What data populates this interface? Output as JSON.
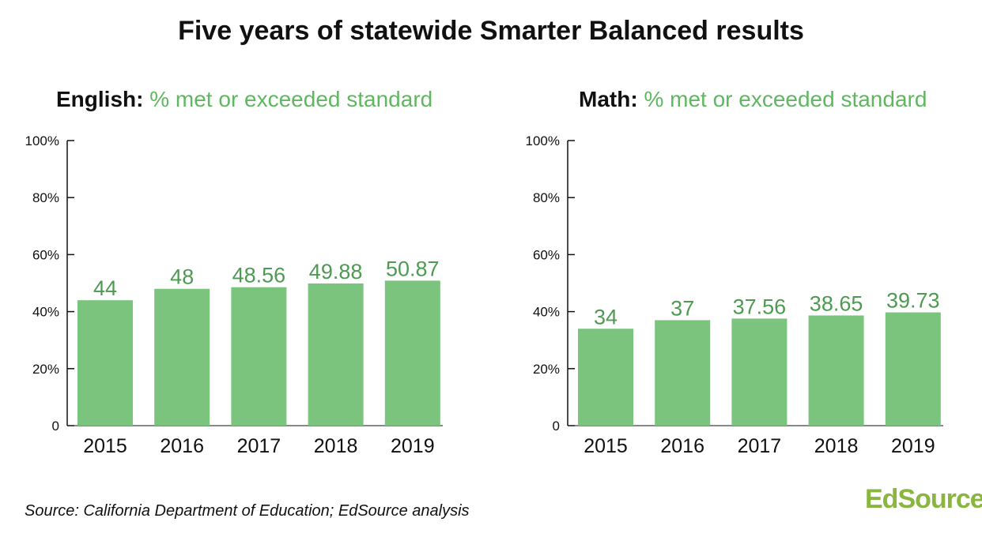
{
  "title": "Five years of statewide Smarter Balanced results",
  "source": "Source: California Department of Education; EdSource analysis",
  "brand": "EdSource",
  "colors": {
    "bar": "#7ac47d",
    "data_label": "#4f9a52",
    "title_accent": "#5fb760",
    "brand": "#8ab63f"
  },
  "chart_data": [
    {
      "type": "bar",
      "title_lead": "English:",
      "title_rest": "% met or exceeded standard",
      "categories": [
        "2015",
        "2016",
        "2017",
        "2018",
        "2019"
      ],
      "values": [
        44,
        48,
        48.56,
        49.88,
        50.87
      ],
      "value_labels": [
        "44",
        "48",
        "48.56",
        "49.88",
        "50.87"
      ],
      "ylim": [
        0,
        100
      ],
      "yticks": [
        0,
        20,
        40,
        60,
        80,
        100
      ],
      "ytick_labels": [
        "0",
        "20%",
        "40%",
        "60%",
        "80%",
        "100%"
      ],
      "grid": false
    },
    {
      "type": "bar",
      "title_lead": "Math:",
      "title_rest": "% met or exceeded standard",
      "categories": [
        "2015",
        "2016",
        "2017",
        "2018",
        "2019"
      ],
      "values": [
        34,
        37,
        37.56,
        38.65,
        39.73
      ],
      "value_labels": [
        "34",
        "37",
        "37.56",
        "38.65",
        "39.73"
      ],
      "ylim": [
        0,
        100
      ],
      "yticks": [
        0,
        20,
        40,
        60,
        80,
        100
      ],
      "ytick_labels": [
        "0",
        "20%",
        "40%",
        "60%",
        "80%",
        "100%"
      ],
      "grid": false
    }
  ]
}
